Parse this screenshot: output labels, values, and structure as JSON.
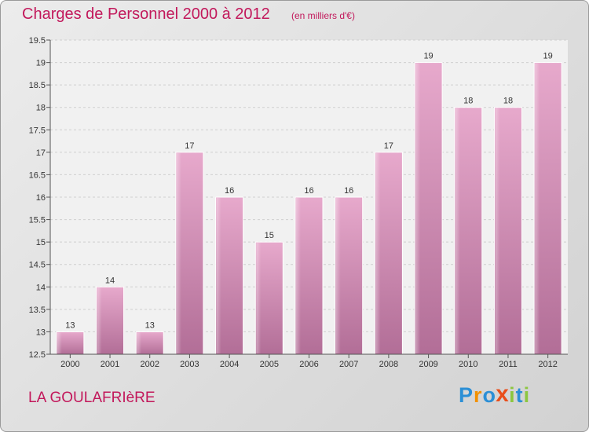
{
  "header": {
    "title": "Charges de Personnel 2000 à 2012",
    "unit": "(en milliers d'€)"
  },
  "footer": {
    "place": "LA GOULAFRIèRE",
    "logo_letters": [
      "P",
      "r",
      "o",
      "x",
      "i",
      "t",
      "i"
    ],
    "logo_colors": [
      "#2b8fd6",
      "#f29100",
      "#2b8fd6",
      "#e94e1b",
      "#8cc63f",
      "#2b8fd6",
      "#8cc63f"
    ]
  },
  "chart_data": {
    "type": "bar",
    "categories": [
      "2000",
      "2001",
      "2002",
      "2003",
      "2004",
      "2005",
      "2006",
      "2007",
      "2008",
      "2009",
      "2010",
      "2011",
      "2012"
    ],
    "values": [
      13,
      14,
      13,
      17,
      16,
      15,
      16,
      16,
      17,
      19,
      18,
      18,
      19
    ],
    "value_labels": [
      "13",
      "14",
      "13",
      "17",
      "16",
      "15",
      "16",
      "16",
      "17",
      "19",
      "18",
      "18",
      "19"
    ],
    "title": "Charges de Personnel 2000 à 2012",
    "xlabel": "",
    "ylabel": "",
    "ylim": [
      12.5,
      19.5
    ],
    "y_ticks": [
      "12.5",
      "13",
      "13.5",
      "14",
      "14.5",
      "15",
      "15.5",
      "16",
      "16.5",
      "17",
      "17.5",
      "18",
      "18.5",
      "19",
      "19.5"
    ],
    "y_tick_values": [
      12.5,
      13,
      13.5,
      14,
      14.5,
      15,
      15.5,
      16,
      16.5,
      17,
      17.5,
      18,
      18.5,
      19,
      19.5
    ],
    "grid": true,
    "bar_color": "#d98fba"
  }
}
